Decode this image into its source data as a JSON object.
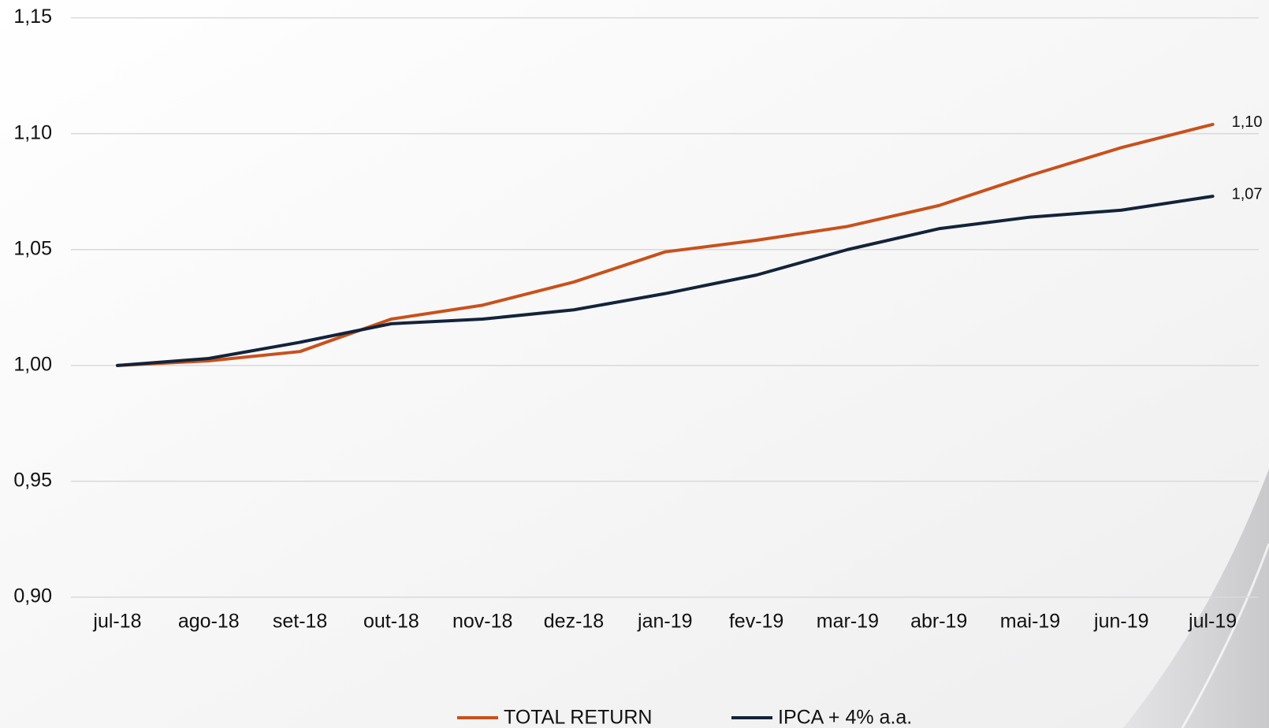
{
  "chart_data": {
    "type": "line",
    "categories": [
      "jul-18",
      "ago-18",
      "set-18",
      "out-18",
      "nov-18",
      "dez-18",
      "jan-19",
      "fev-19",
      "mar-19",
      "abr-19",
      "mai-19",
      "jun-19",
      "jul-19"
    ],
    "series": [
      {
        "name": "TOTAL RETURN",
        "color": "#c8511b",
        "values": [
          1.0,
          1.002,
          1.006,
          1.02,
          1.026,
          1.036,
          1.049,
          1.054,
          1.06,
          1.069,
          1.082,
          1.094,
          1.104
        ],
        "value_labels": [
          null,
          null,
          null,
          null,
          null,
          null,
          null,
          null,
          null,
          null,
          null,
          null,
          "1,10"
        ]
      },
      {
        "name": "IPCA + 4% a.a.",
        "color": "#13233a",
        "values": [
          1.0,
          1.003,
          1.01,
          1.018,
          1.02,
          1.024,
          1.031,
          1.039,
          1.05,
          1.059,
          1.064,
          1.067,
          1.073
        ],
        "value_labels": [
          null,
          null,
          null,
          null,
          null,
          null,
          null,
          null,
          null,
          null,
          null,
          null,
          "1,07"
        ]
      }
    ],
    "ylim": [
      0.9,
      1.15
    ],
    "yticks": [
      {
        "value": 0.9,
        "label": "0,90"
      },
      {
        "value": 0.95,
        "label": "0,95"
      },
      {
        "value": 1.0,
        "label": "1,00"
      },
      {
        "value": 1.05,
        "label": "1,05"
      },
      {
        "value": 1.1,
        "label": "1,10"
      },
      {
        "value": 1.15,
        "label": "1,15"
      }
    ],
    "grid": true,
    "legend": "bottom"
  }
}
